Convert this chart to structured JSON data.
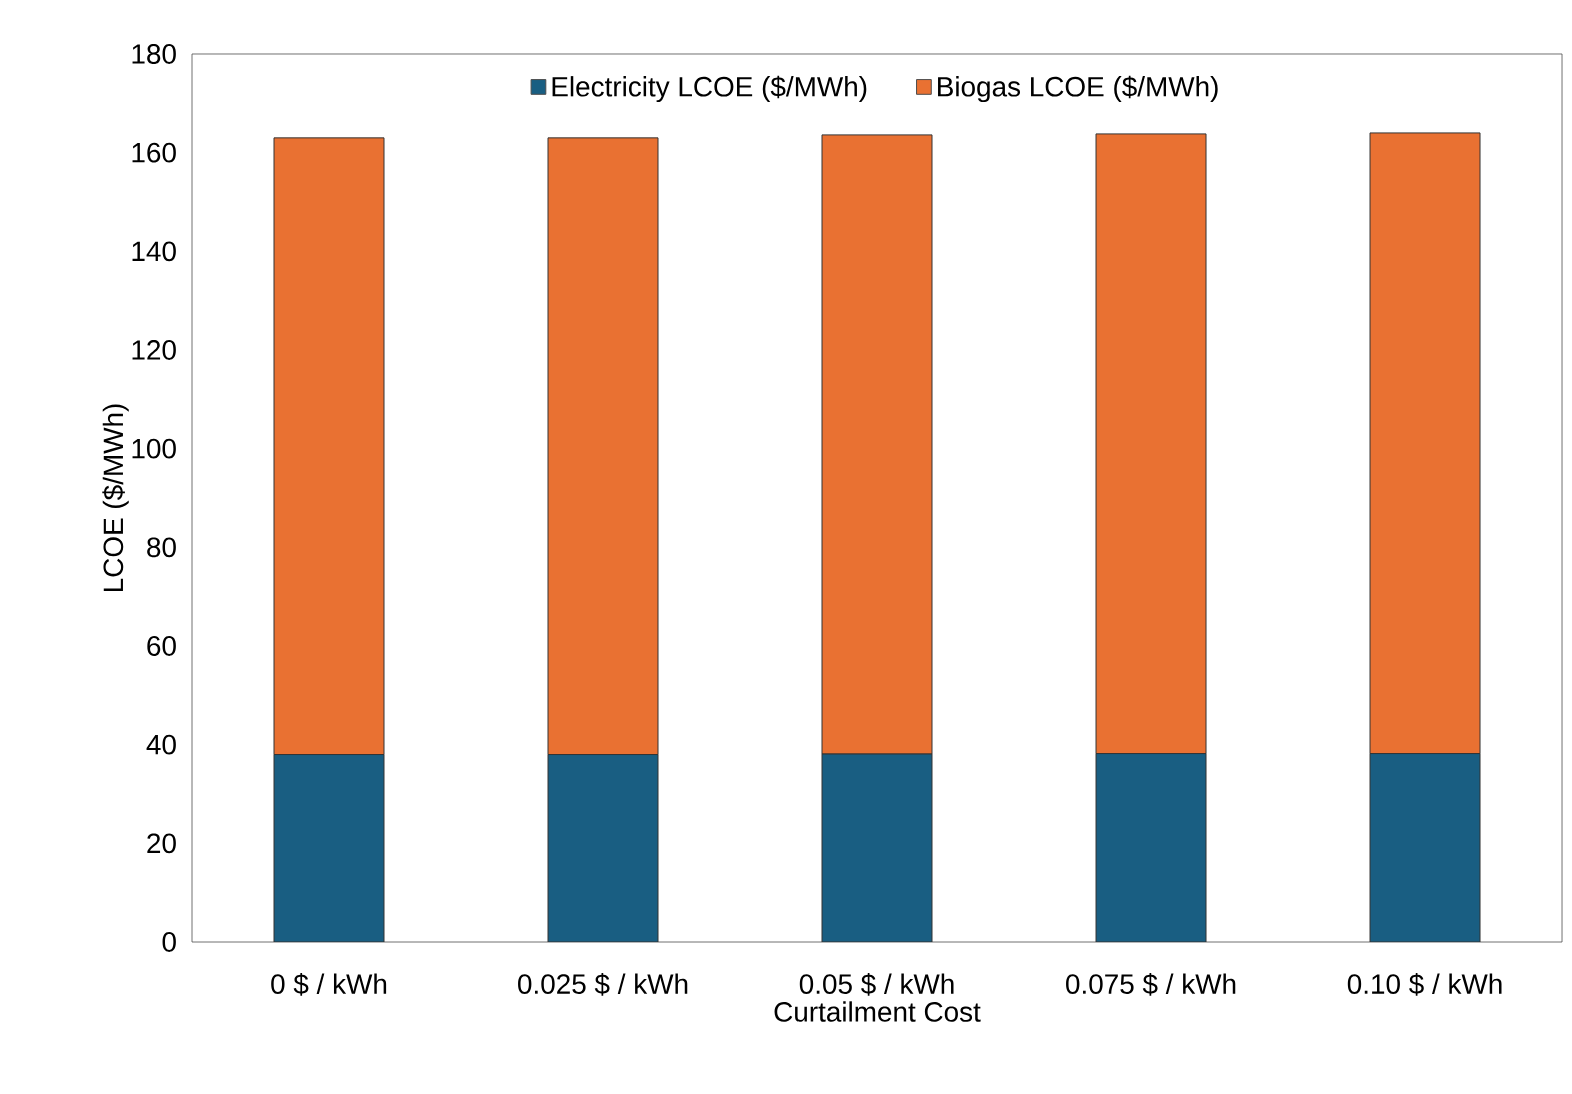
{
  "chart_data": {
    "type": "bar",
    "stacked": true,
    "xlabel": "Curtailment Cost",
    "ylabel": "LCOE ($/MWh)",
    "categories": [
      "0 $ / kWh",
      "0.025 $ / kWh",
      "0.05 $ / kWh",
      "0.075 $ / kWh",
      "0.10 $ / kWh"
    ],
    "series": [
      {
        "name": "Electricity LCOE ($/MWh)",
        "color": "#195e82",
        "values": [
          38.0,
          38.0,
          38.1,
          38.2,
          38.2
        ]
      },
      {
        "name": "Biogas LCOE ($/MWh)",
        "color": "#e97132",
        "values": [
          125.0,
          125.0,
          125.5,
          125.6,
          125.8
        ]
      }
    ],
    "ylim": [
      0,
      180
    ],
    "yticks": [
      0,
      20,
      40,
      60,
      80,
      100,
      120,
      140,
      160,
      180
    ],
    "grid": false,
    "legend": "top"
  }
}
